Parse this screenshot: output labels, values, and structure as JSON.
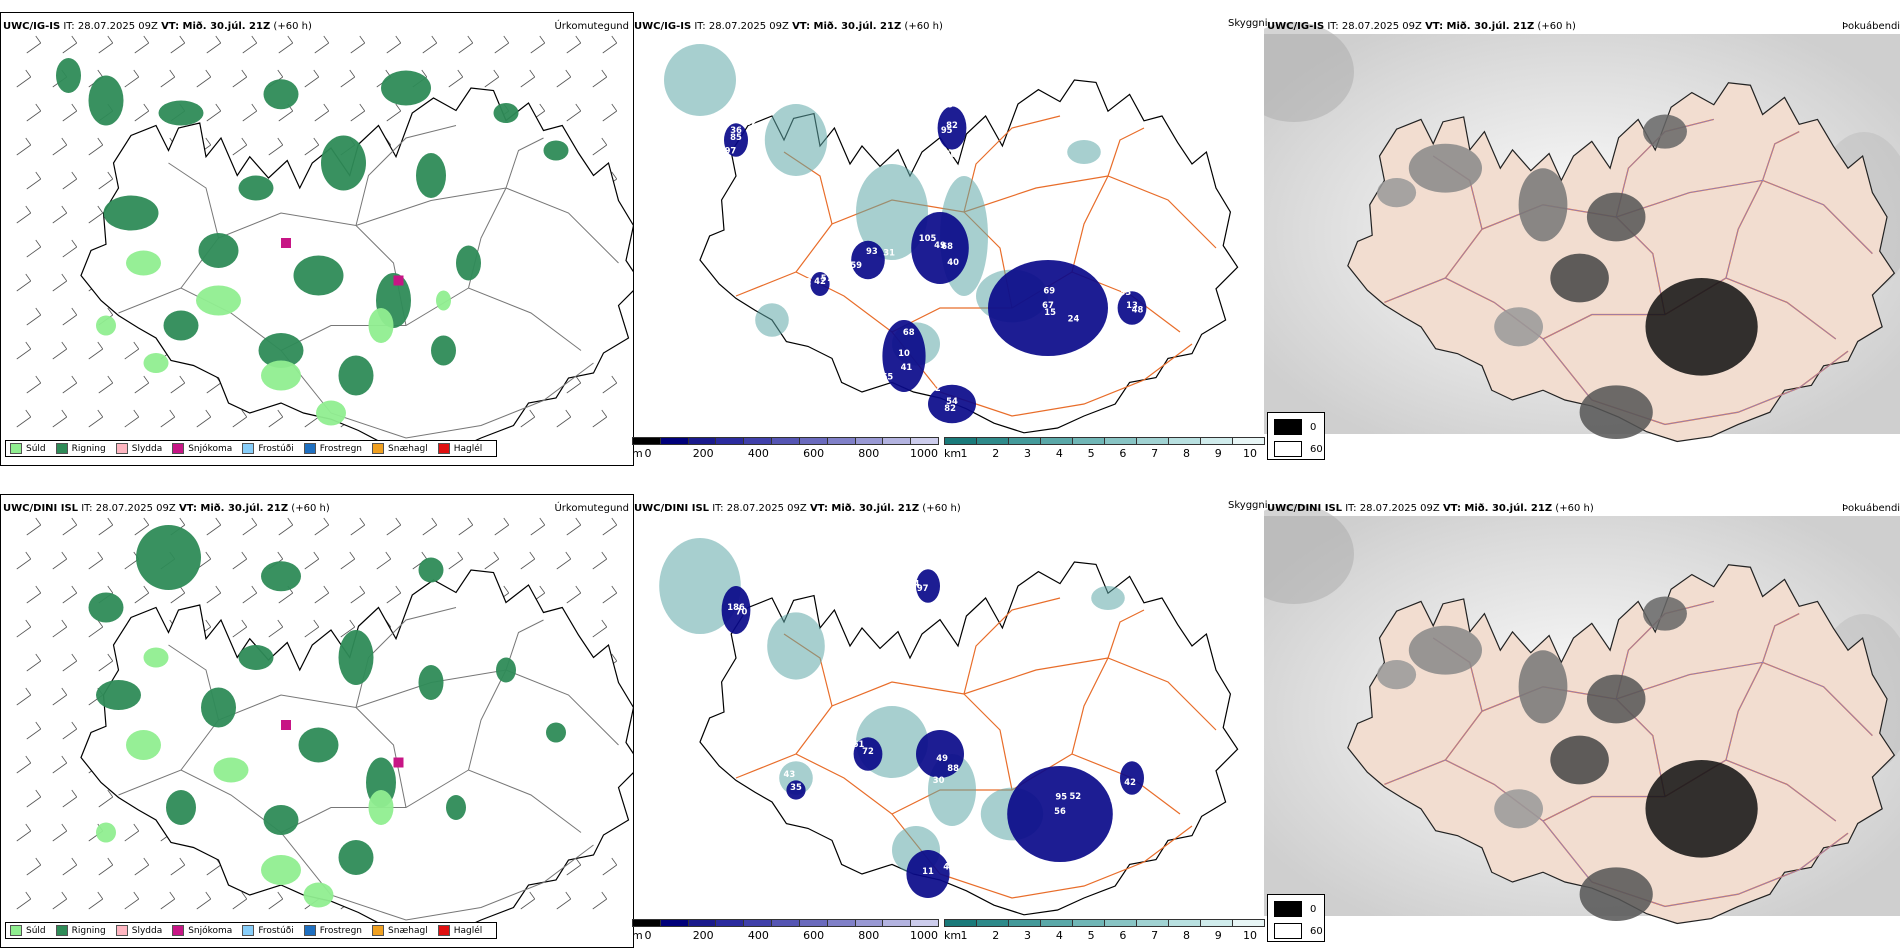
{
  "rows": [
    {
      "precip_panel": {
        "model": "UWC/IG-IS",
        "it_label": "IT: 28.07.2025 09Z",
        "vt_label": "VT: Mið. 30.júl. 21Z",
        "lead": "(+60 h)",
        "right_title": "Úrkomutegund"
      },
      "cloud_panel": {
        "model": "UWC/IG-IS",
        "it_label": "IT: 28.07.2025 09Z",
        "vt_label": "VT: Mið. 30.júl. 21Z",
        "lead": "(+60 h)",
        "right_title": "Skyggni",
        "cloud_labels": [
          {
            "text": "85"
          },
          {
            "text": "95"
          },
          {
            "text": "69"
          },
          {
            "text": "40"
          },
          {
            "text": "46"
          },
          {
            "text": "10"
          },
          {
            "text": "82"
          },
          {
            "text": "33"
          },
          {
            "text": "86"
          },
          {
            "text": "57"
          },
          {
            "text": "82"
          },
          {
            "text": "15"
          },
          {
            "text": "105"
          },
          {
            "text": "31"
          },
          {
            "text": "55"
          },
          {
            "text": "54"
          },
          {
            "text": "48"
          },
          {
            "text": "82"
          },
          {
            "text": "52"
          },
          {
            "text": "50"
          },
          {
            "text": "67"
          },
          {
            "text": "68"
          },
          {
            "text": "59"
          },
          {
            "text": "68"
          },
          {
            "text": "37"
          },
          {
            "text": "13"
          },
          {
            "text": "57"
          },
          {
            "text": "97"
          },
          {
            "text": "199"
          },
          {
            "text": "24"
          },
          {
            "text": "49"
          },
          {
            "text": "93"
          },
          {
            "text": "41"
          },
          {
            "text": "32"
          },
          {
            "text": "32"
          },
          {
            "text": "42"
          },
          {
            "text": "36"
          }
        ]
      },
      "fog_panel": {
        "model": "UWC/IG-IS",
        "it_label": "IT: 28.07.2025 09Z",
        "vt_label": "VT: Mið. 30.júl. 21Z",
        "lead": "(+60 h)",
        "right_title": "Þokuábendi"
      }
    },
    {
      "precip_panel": {
        "model": "UWC/DINI ISL",
        "it_label": "IT: 28.07.2025 09Z",
        "vt_label": "VT: Mið. 30.júl. 21Z",
        "lead": "(+60 h)",
        "right_title": "Úrkomutegund"
      },
      "cloud_panel": {
        "model": "UWC/DINI ISL",
        "it_label": "IT: 28.07.2025 09Z",
        "vt_label": "VT: Mið. 30.júl. 21Z",
        "lead": "(+60 h)",
        "right_title": "Skyggni",
        "cloud_labels": [
          {
            "text": "186"
          },
          {
            "text": "97"
          },
          {
            "text": "95"
          },
          {
            "text": "88"
          },
          {
            "text": "30"
          },
          {
            "text": "11"
          },
          {
            "text": "42"
          },
          {
            "text": "43"
          },
          {
            "text": "49"
          },
          {
            "text": "72"
          },
          {
            "text": "56"
          },
          {
            "text": "49"
          },
          {
            "text": "461"
          },
          {
            "text": "47"
          },
          {
            "text": "13"
          },
          {
            "text": "35"
          },
          {
            "text": "70"
          },
          {
            "text": "64"
          },
          {
            "text": "52"
          },
          {
            "text": "30"
          },
          {
            "text": "72"
          }
        ]
      },
      "fog_panel": {
        "model": "UWC/DINI ISL",
        "it_label": "IT: 28.07.2025 09Z",
        "vt_label": "VT: Mið. 30.júl. 21Z",
        "lead": "(+60 h)",
        "right_title": "Þokuábendi"
      }
    }
  ],
  "precip_legend": [
    {
      "label": "Súld",
      "color": "#90ee90"
    },
    {
      "label": "Rigning",
      "color": "#2e8b57"
    },
    {
      "label": "Slydda",
      "color": "#ffb6c1"
    },
    {
      "label": "Snjókoma",
      "color": "#c71585"
    },
    {
      "label": "Frostúði",
      "color": "#87cefa"
    },
    {
      "label": "Frostregn",
      "color": "#1e6fc0"
    },
    {
      "label": "Snæhagl",
      "color": "#f0a020"
    },
    {
      "label": "Haglél",
      "color": "#e01010"
    }
  ],
  "cloud_colorbar": {
    "unit": "m",
    "ticks": [
      "0",
      "200",
      "400",
      "600",
      "800",
      "1000"
    ],
    "colors": [
      "#000000",
      "#00007a",
      "#1a1a8c",
      "#2b2b9e",
      "#4040aa",
      "#5555b3",
      "#6a6abd",
      "#8080c8",
      "#9999d4",
      "#b3b3e0",
      "#ccccec"
    ]
  },
  "vis_colorbar": {
    "unit": "km",
    "ticks": [
      "1",
      "2",
      "3",
      "4",
      "5",
      "6",
      "7",
      "8",
      "9",
      "10"
    ],
    "colors": [
      "#1a7a7a",
      "#2e8a8a",
      "#449a9a",
      "#5aa8a8",
      "#70b6b6",
      "#88c4c4",
      "#a0d2d2",
      "#b8e0e0",
      "#d0ecec",
      "#e8f6f6"
    ]
  },
  "fog_legend": [
    {
      "label": "0",
      "color": "#000000"
    },
    {
      "label": "60",
      "color": "#ffffff"
    }
  ],
  "colors": {
    "land": "#f2ddd0",
    "road": "#e86d2a",
    "coast": "#000000",
    "wind": "#555555",
    "rain": "#2e8b57",
    "drizzle": "#90ee90",
    "cloudbase": "#0a0a8a",
    "vis": "#5fa8a8"
  }
}
